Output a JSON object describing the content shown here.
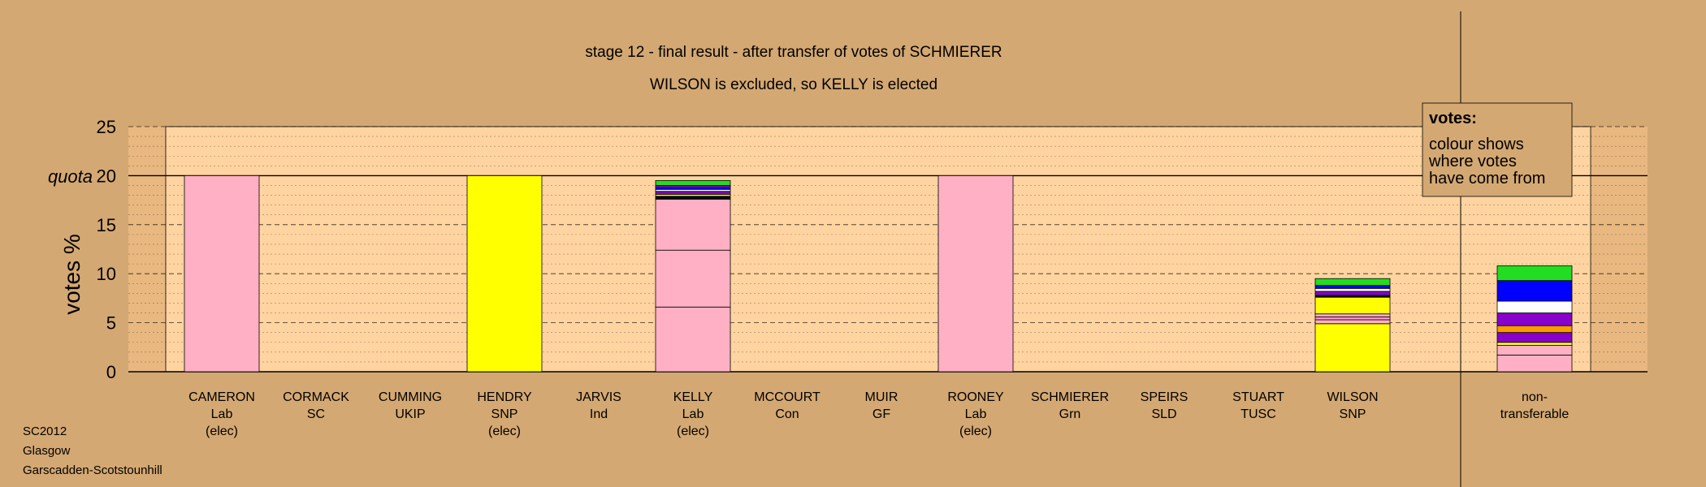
{
  "chart_data": {
    "type": "bar",
    "stacked": true,
    "title": "stage 12 - final result - after transfer of votes of SCHMIERER",
    "subtitle": "WILSON is excluded, so KELLY is elected",
    "ylabel": "votes %",
    "quota_label": "quota",
    "quota_value": 20,
    "ylim": [
      0,
      25
    ],
    "yticks": [
      0,
      5,
      10,
      15,
      20,
      25
    ],
    "grid": true,
    "legend": {
      "title": "votes:",
      "lines": [
        "colour shows",
        "where votes",
        "have come from"
      ]
    },
    "candidates": [
      {
        "name": "CAMERON",
        "party": "Lab",
        "status": "(elec)",
        "segments": [
          {
            "color": "#ffb0c4",
            "value": 20.0
          }
        ]
      },
      {
        "name": "CORMACK",
        "party": "SC",
        "status": "",
        "segments": []
      },
      {
        "name": "CUMMING",
        "party": "UKIP",
        "status": "",
        "segments": []
      },
      {
        "name": "HENDRY",
        "party": "SNP",
        "status": "(elec)",
        "segments": [
          {
            "color": "#ffff00",
            "value": 20.0
          }
        ]
      },
      {
        "name": "JARVIS",
        "party": "Ind",
        "status": "",
        "segments": []
      },
      {
        "name": "KELLY",
        "party": "Lab",
        "status": "(elec)",
        "segments": [
          {
            "color": "#ffb0c4",
            "value": 6.6
          },
          {
            "color": "#ffb0c4",
            "value": 5.8
          },
          {
            "color": "#ffb0c4",
            "value": 5.2
          },
          {
            "color": "#000000",
            "value": 0.3
          },
          {
            "color": "#ffff00",
            "value": 0.2
          },
          {
            "color": "#8800cc",
            "value": 0.3
          },
          {
            "color": "#ffffff",
            "value": 0.2
          },
          {
            "color": "#0000ff",
            "value": 0.2
          },
          {
            "color": "#8800cc",
            "value": 0.2
          },
          {
            "color": "#22dd22",
            "value": 0.5
          }
        ]
      },
      {
        "name": "MCCOURT",
        "party": "Con",
        "status": "",
        "segments": []
      },
      {
        "name": "MUIR",
        "party": "GF",
        "status": "",
        "segments": []
      },
      {
        "name": "ROONEY",
        "party": "Lab",
        "status": "(elec)",
        "segments": [
          {
            "color": "#ffb0c4",
            "value": 20.0
          }
        ]
      },
      {
        "name": "SCHMIERER",
        "party": "Grn",
        "status": "",
        "segments": []
      },
      {
        "name": "SPEIRS",
        "party": "SLD",
        "status": "",
        "segments": []
      },
      {
        "name": "STUART",
        "party": "TUSC",
        "status": "",
        "segments": []
      },
      {
        "name": "WILSON",
        "party": "SNP",
        "status": "",
        "segments": [
          {
            "color": "#ffff00",
            "value": 4.9
          },
          {
            "color": "#ffb0c4",
            "value": 0.4
          },
          {
            "color": "#ff99cc",
            "value": 0.3
          },
          {
            "color": "#ffb0c4",
            "value": 0.3
          },
          {
            "color": "#ffff00",
            "value": 1.7
          },
          {
            "color": "#000000",
            "value": 0.2
          },
          {
            "color": "#8800cc",
            "value": 0.4
          },
          {
            "color": "#ffffff",
            "value": 0.3
          },
          {
            "color": "#0000ff",
            "value": 0.3
          },
          {
            "color": "#22dd22",
            "value": 0.7
          }
        ]
      }
    ],
    "nontransferable": {
      "label1": "non-",
      "label2": "transferable",
      "segments": [
        {
          "color": "#ffb0c4",
          "value": 1.7
        },
        {
          "color": "#ffb0c4",
          "value": 1.0
        },
        {
          "color": "#ffff00",
          "value": 0.3
        },
        {
          "color": "#8800cc",
          "value": 1.0
        },
        {
          "color": "#ff9900",
          "value": 0.7
        },
        {
          "color": "#8800cc",
          "value": 1.3
        },
        {
          "color": "#ffffff",
          "value": 1.2
        },
        {
          "color": "#0000ff",
          "value": 2.1
        },
        {
          "color": "#22dd22",
          "value": 1.5
        }
      ]
    }
  },
  "footer": {
    "line1": "SC2012",
    "line2": "Glasgow",
    "line3": "Garscadden-Scotstounhill"
  }
}
